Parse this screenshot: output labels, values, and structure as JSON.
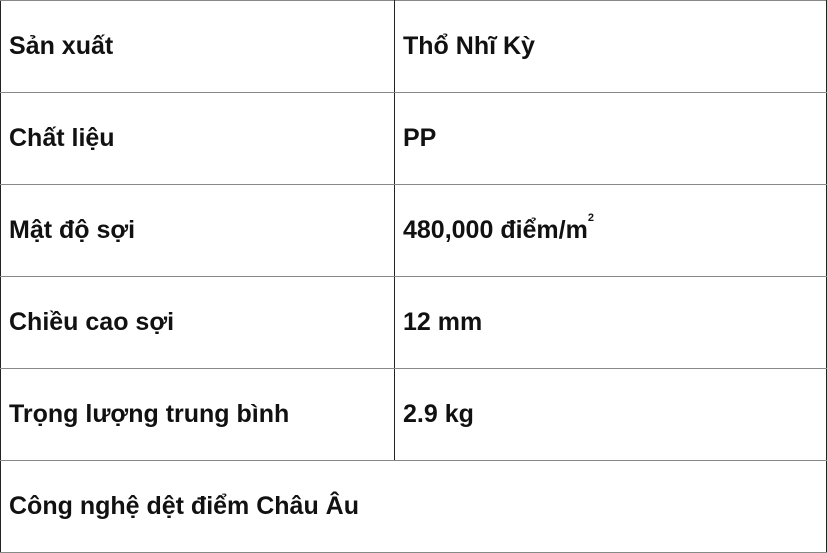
{
  "rows": [
    {
      "label": "Sản xuất",
      "value": "Thổ Nhĩ Kỳ"
    },
    {
      "label": "Chất liệu",
      "value": "PP"
    },
    {
      "label": "Mật độ sợi",
      "value": "480,000 điểm/m",
      "value_sup": "2"
    },
    {
      "label": "Chiều cao sợi",
      "value": "12 mm"
    },
    {
      "label": "Trọng lượng trung bình",
      "value": "2.9 kg"
    }
  ],
  "footer": "Công nghệ dệt điểm Châu Âu"
}
